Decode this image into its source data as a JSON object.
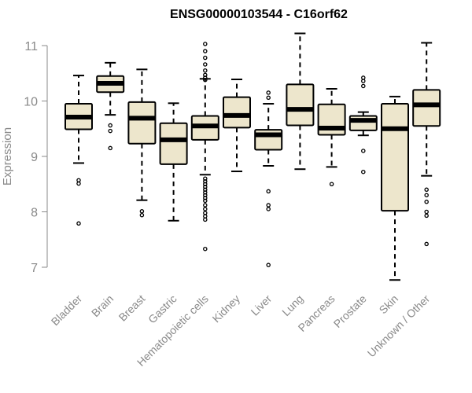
{
  "chart_data": {
    "type": "box",
    "title": "ENSG00000103544 - C16orf62",
    "ylabel": "Expression",
    "xlabel": "",
    "ylim": [
      6.6,
      11.35
    ],
    "yticks": [
      7,
      8,
      9,
      10,
      11
    ],
    "grid": false,
    "colors": {
      "box_fill": "#ede6cc",
      "stroke": "#000000",
      "axis": "#8a8a8a"
    },
    "categories": [
      "Bladder",
      "Brain",
      "Breast",
      "Gastric",
      "Hematopoietic cells",
      "Kidney",
      "Liver",
      "Lung",
      "Pancreas",
      "Prostate",
      "Skin",
      "Unknown / Other"
    ],
    "boxes": [
      {
        "min": 8.88,
        "q1": 9.49,
        "median": 9.71,
        "q3": 9.95,
        "max": 10.46,
        "outliers": [
          8.57,
          8.51,
          7.79
        ]
      },
      {
        "min": 9.75,
        "q1": 10.16,
        "median": 10.32,
        "q3": 10.45,
        "max": 10.69,
        "outliers": [
          9.56,
          9.46,
          9.15
        ]
      },
      {
        "min": 8.21,
        "q1": 9.23,
        "median": 9.69,
        "q3": 9.98,
        "max": 10.57,
        "outliers": [
          8.01,
          7.94
        ]
      },
      {
        "min": 7.84,
        "q1": 8.86,
        "median": 9.3,
        "q3": 9.6,
        "max": 9.96,
        "outliers": []
      },
      {
        "min": 8.67,
        "q1": 9.3,
        "median": 9.55,
        "q3": 9.73,
        "max": 10.4,
        "outliers": [
          11.03,
          10.9,
          10.78,
          10.66,
          10.55,
          10.47,
          10.42,
          10.38,
          8.6,
          8.55,
          8.5,
          8.45,
          8.4,
          8.35,
          8.3,
          8.25,
          8.2,
          8.12,
          8.05,
          7.98,
          7.92,
          7.86,
          7.33
        ]
      },
      {
        "min": 8.73,
        "q1": 9.52,
        "median": 9.74,
        "q3": 10.07,
        "max": 10.39,
        "outliers": []
      },
      {
        "min": 8.83,
        "q1": 9.12,
        "median": 9.39,
        "q3": 9.48,
        "max": 9.95,
        "outliers": [
          10.15,
          10.06,
          8.37,
          8.12,
          8.05,
          7.04
        ]
      },
      {
        "min": 8.77,
        "q1": 9.56,
        "median": 9.85,
        "q3": 10.3,
        "max": 11.22,
        "outliers": []
      },
      {
        "min": 8.81,
        "q1": 9.39,
        "median": 9.51,
        "q3": 9.94,
        "max": 10.22,
        "outliers": [
          8.5
        ]
      },
      {
        "min": 9.38,
        "q1": 9.47,
        "median": 9.65,
        "q3": 9.73,
        "max": 9.8,
        "outliers": [
          10.42,
          10.36,
          10.27,
          9.1,
          8.72
        ]
      },
      {
        "min": 6.77,
        "q1": 8.02,
        "median": 9.5,
        "q3": 9.95,
        "max": 10.08,
        "outliers": []
      },
      {
        "min": 8.65,
        "q1": 9.55,
        "median": 9.93,
        "q3": 10.2,
        "max": 11.05,
        "outliers": [
          8.4,
          8.3,
          8.18,
          8.0,
          7.93,
          7.42
        ]
      }
    ]
  }
}
